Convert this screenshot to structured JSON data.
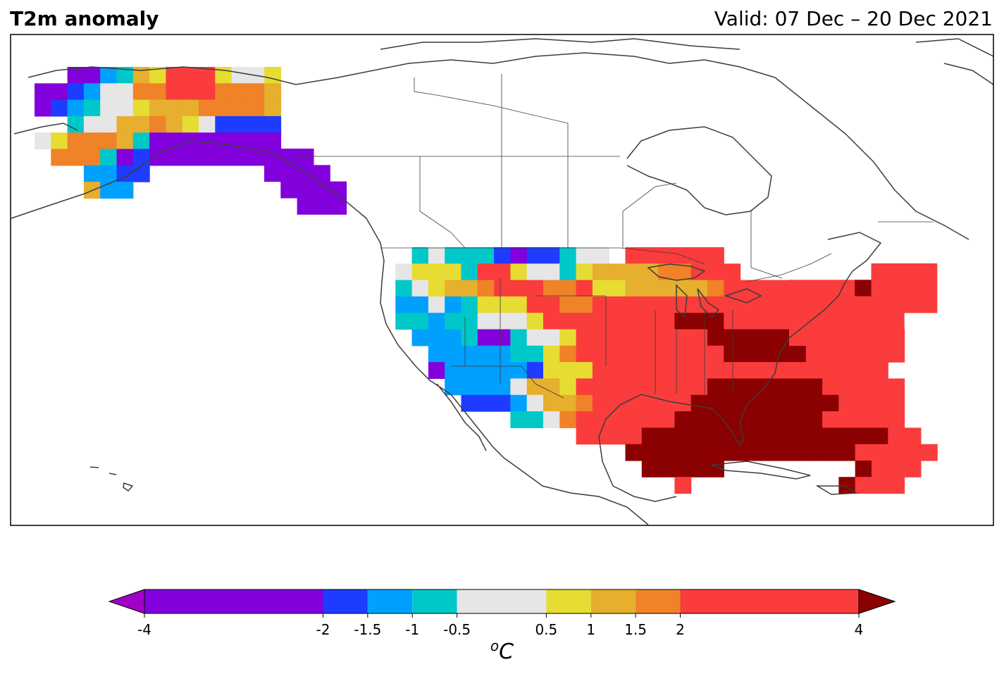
{
  "header": {
    "title": "T2m anomaly",
    "valid": "Valid: 07 Dec – 20 Dec 2021"
  },
  "colorbar": {
    "unit_base": "C",
    "unit_sup": "o",
    "bins": [
      {
        "from": -4,
        "to": -2,
        "color": "#8200DC"
      },
      {
        "from": -2,
        "to": -1.5,
        "color": "#1E3CFF"
      },
      {
        "from": -1.5,
        "to": -1,
        "color": "#00A0FF"
      },
      {
        "from": -1,
        "to": -0.5,
        "color": "#00C8C8"
      },
      {
        "from": -0.5,
        "to": 0.5,
        "color": "#E6E6E6"
      },
      {
        "from": 0.5,
        "to": 1,
        "color": "#E6DC32"
      },
      {
        "from": 1,
        "to": 1.5,
        "color": "#E6AF2D"
      },
      {
        "from": 1.5,
        "to": 2,
        "color": "#F08228"
      },
      {
        "from": 2,
        "to": 4,
        "color": "#FA3C3C"
      }
    ],
    "extend_low_color": "#A000C8",
    "extend_high_color": "#8B0000",
    "ticks": [
      "-4",
      "-2",
      "-1.5",
      "-1",
      "-0.5",
      "0.5",
      "1",
      "1.5",
      "2",
      "4"
    ]
  },
  "legend_codes": {
    "P": "#8200DC",
    "B": "#1E3CFF",
    "L": "#00A0FF",
    "C": "#00C8C8",
    "G": "#E6E6E6",
    "Y": "#E6DC32",
    "O": "#E6AF2D",
    "N": "#F08228",
    "R": "#FA3C3C",
    "D": "#8B0000"
  },
  "regions": [
    {
      "name": "alaska",
      "rows": [
        "..PPLCOYRRRYGGY",
        "PPBLGGNNRRRNNNO",
        "PBLCGGYOOONNNNO",
        "..CGGOONOYGBBBB",
        "GYNNNOCPPPPPPPP",
        ".NNNCPBPPPPPPPP",
        "...LLBB........",
        "...OLL.........",
        ".........."
      ]
    },
    {
      "name": "panhandle",
      "rows": [
        "PPP..",
        "PPPP.",
        ".PPPP",
        "..PPP"
      ]
    },
    {
      "name": "conus",
      "rows": [
        "..CGCCCBPBBCGG.RRRRRR",
        ".GYYYCRRYGGCYOOOONNRRR",
        ".CGYOONRRRNNRYYOOOOONRRRR",
        ".LLGLCYYYRRNNRRRRRRRRRRRRRR",
        ".CCLCCGGGYRRRRRRRRDDDRRRRRRR",
        "..LLLCPPCGGYRRRRRRRRDDDDDRRRRRRR",
        "...LLLLLCCYNRRRRRRRRRDDDDDRRRRRR",
        "...PLLLLLBYYYRRRRRRRRRRRRRRRRRR",
        "....LLLLGOOYRRRRRRRRDDDDDDDRRRRR",
        ".....BBBLGOONRRRRRRDDDDDDDDDRRRR",
        "........CCGNRRRRRRDDDDDDDDDRRRRR",
        "............RRRRDDDDDDDDDDDDDDDRR",
        "...............DDDDDDDDDDDDDDRRRRR",
        "................DDDDD........DRRR",
        "..................R.........DRRR"
      ]
    },
    {
      "name": "northeast",
      "rows": [
        ".....RRRR",
        "RRRRDRRRR",
        "RRRRRRRRR",
        "RRRRRRR..",
        "RRR......"
      ]
    }
  ]
}
